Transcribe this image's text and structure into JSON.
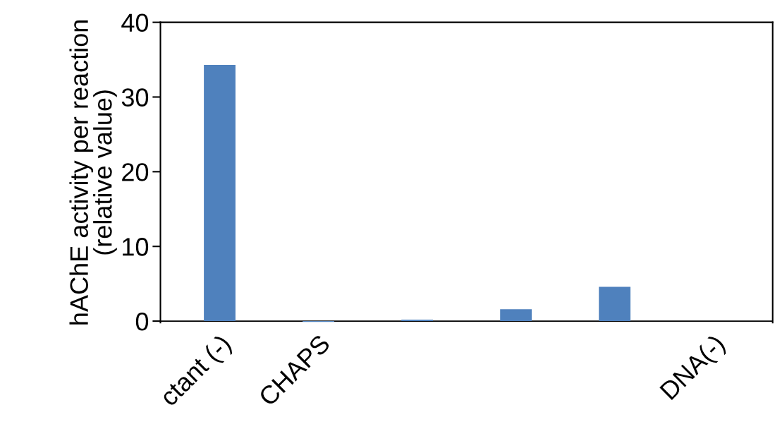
{
  "chart_data": {
    "type": "bar",
    "ylabel": "hAChE activity per reaction\n(relative value)",
    "categories": [
      "ctant (-)",
      "CHAPS",
      null,
      null,
      null,
      "DNA(-)"
    ],
    "values": [
      34.3,
      -0.1,
      0.2,
      1.6,
      4.6,
      0
    ],
    "color": "#4f81bd",
    "ylim": [
      -0.2,
      40
    ],
    "yticks": [
      0,
      10,
      20,
      30,
      40
    ],
    "grid": false
  }
}
